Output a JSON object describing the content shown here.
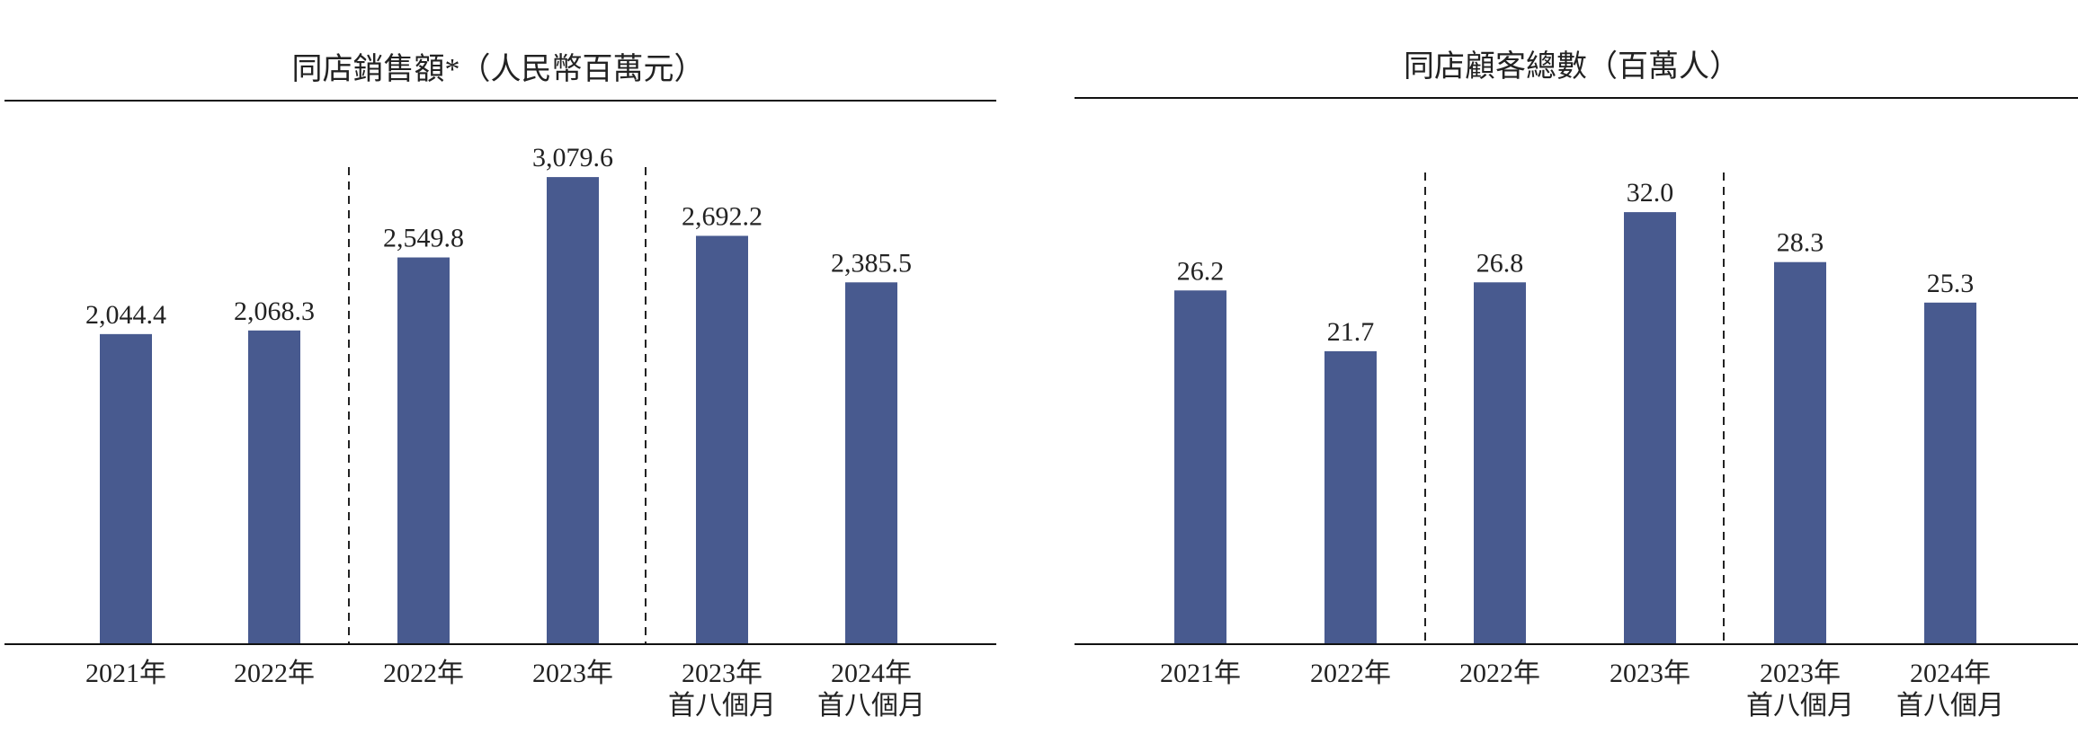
{
  "colors": {
    "bar": "#485a8f",
    "axis": "#111111",
    "text": "#222222"
  },
  "chart_data": [
    {
      "type": "bar",
      "title": "同店銷售額*（人民幣百萬元）",
      "xlabel": "",
      "ylabel": "",
      "categories": [
        [
          "2021年"
        ],
        [
          "2022年"
        ],
        [
          "2022年"
        ],
        [
          "2023年"
        ],
        [
          "2023年",
          "首八個月"
        ],
        [
          "2024年",
          "首八個月"
        ]
      ],
      "values": [
        2044.4,
        2068.3,
        2549.8,
        3079.6,
        2692.2,
        2385.5
      ],
      "value_labels": [
        "2,044.4",
        "2,068.3",
        "2,549.8",
        "3,079.6",
        "2,692.2",
        "2,385.5"
      ],
      "ylim": [
        0,
        3400
      ],
      "grid": false,
      "group_separators_after": [
        1,
        3
      ]
    },
    {
      "type": "bar",
      "title": "同店顧客總數（百萬人）",
      "xlabel": "",
      "ylabel": "",
      "categories": [
        [
          "2021年"
        ],
        [
          "2022年"
        ],
        [
          "2022年"
        ],
        [
          "2023年"
        ],
        [
          "2023年",
          "首八個月"
        ],
        [
          "2024年",
          "首八個月"
        ]
      ],
      "values": [
        26.2,
        21.7,
        26.8,
        32.0,
        28.3,
        25.3
      ],
      "value_labels": [
        "26.2",
        "21.7",
        "26.8",
        "32.0",
        "28.3",
        "25.3"
      ],
      "ylim": [
        0,
        36
      ],
      "grid": false,
      "group_separators_after": [
        1,
        3
      ]
    }
  ]
}
